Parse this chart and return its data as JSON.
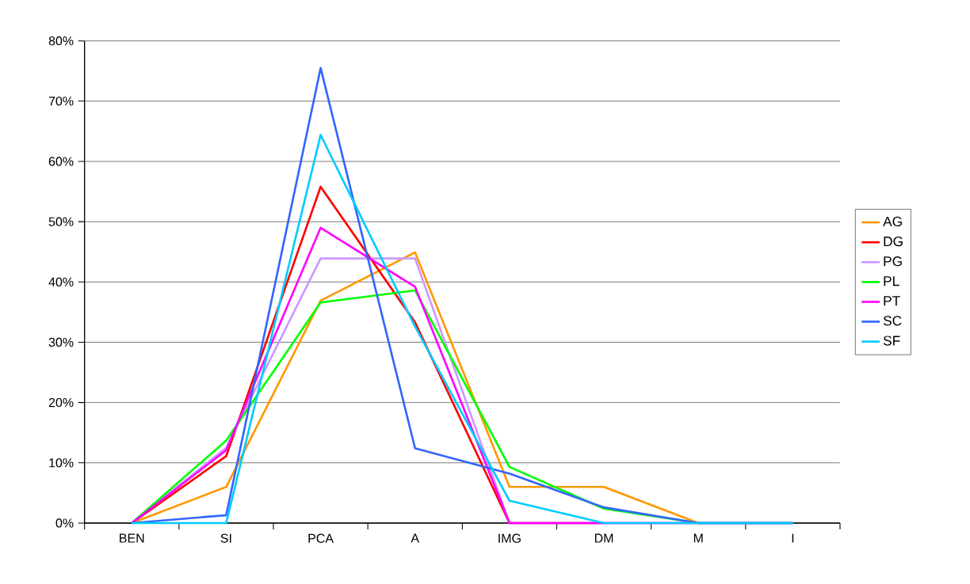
{
  "chart_data": {
    "type": "line",
    "categories": [
      "BEN",
      "SI",
      "PCA",
      "A",
      "IMG",
      "DM",
      "M",
      "I"
    ],
    "series": [
      {
        "name": "AG",
        "color": "#ff9900",
        "values": [
          0,
          6.0,
          36.9,
          44.9,
          6.0,
          6.0,
          0,
          0
        ]
      },
      {
        "name": "DG",
        "color": "#ff0000",
        "values": [
          0,
          11.1,
          55.8,
          33.3,
          0,
          0,
          null,
          null
        ]
      },
      {
        "name": "PG",
        "color": "#cc99ff",
        "values": [
          0,
          12.5,
          43.9,
          43.9,
          0,
          0,
          0,
          0
        ]
      },
      {
        "name": "PL",
        "color": "#00ff00",
        "values": [
          0,
          13.7,
          36.6,
          38.6,
          9.3,
          2.4,
          0,
          0
        ]
      },
      {
        "name": "PT",
        "color": "#ff00ff",
        "values": [
          0,
          12.1,
          49.0,
          39.2,
          0,
          0,
          0,
          0
        ]
      },
      {
        "name": "SC",
        "color": "#3366ff",
        "values": [
          0,
          1.3,
          75.5,
          12.4,
          8.2,
          2.6,
          0,
          0
        ]
      },
      {
        "name": "SF",
        "color": "#00ccff",
        "values": [
          0,
          0,
          64.4,
          32.6,
          3.7,
          0,
          0,
          0
        ]
      }
    ],
    "ylim": [
      0,
      80
    ],
    "yticks": [
      {
        "value": 0,
        "label": "0%"
      },
      {
        "value": 10,
        "label": "10%"
      },
      {
        "value": 20,
        "label": "20%"
      },
      {
        "value": 30,
        "label": "30%"
      },
      {
        "value": 40,
        "label": "40%"
      },
      {
        "value": 50,
        "label": "50%"
      },
      {
        "value": 60,
        "label": "60%"
      },
      {
        "value": 70,
        "label": "70%"
      },
      {
        "value": 80,
        "label": "80%"
      }
    ],
    "grid": "y",
    "legend": "right",
    "marker": "none",
    "line_style": "solid"
  }
}
